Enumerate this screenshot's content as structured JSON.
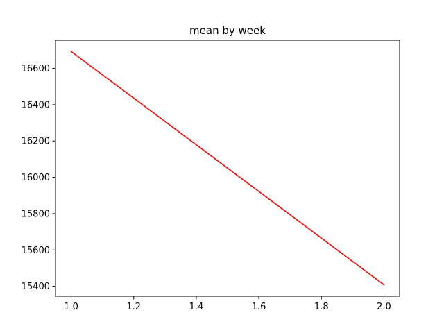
{
  "chart_data": {
    "type": "line",
    "title": "mean by week",
    "xlabel": "",
    "ylabel": "",
    "xlim": [
      0.95,
      2.05
    ],
    "ylim": [
      15345,
      16755
    ],
    "x_ticks": [
      1.0,
      1.2,
      1.4,
      1.6,
      1.8,
      2.0
    ],
    "x_tick_labels": [
      "1.0",
      "1.2",
      "1.4",
      "1.6",
      "1.8",
      "2.0"
    ],
    "y_ticks": [
      15400,
      15600,
      15800,
      16000,
      16200,
      16400,
      16600
    ],
    "y_tick_labels": [
      "15400",
      "15600",
      "15800",
      "16000",
      "16200",
      "16400",
      "16600"
    ],
    "grid": false,
    "series": [
      {
        "color": "#ff0000",
        "x": [
          1,
          2
        ],
        "y": [
          16693,
          15408
        ]
      }
    ]
  }
}
